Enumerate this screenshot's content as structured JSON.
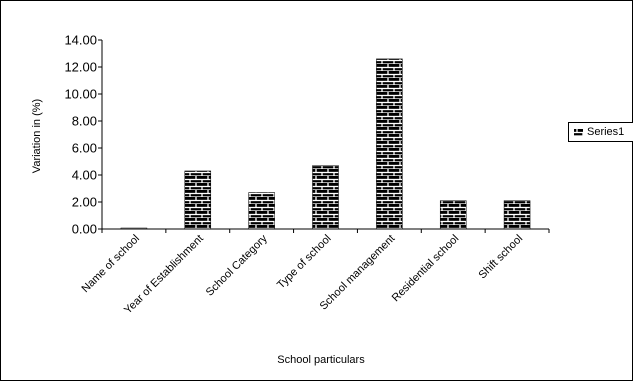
{
  "chart_data": {
    "type": "bar",
    "categories": [
      "Name of school",
      "Year of Establishment",
      "School Category",
      "Type of school",
      "School management",
      "Residential school",
      "Shift school"
    ],
    "series": [
      {
        "name": "Series1",
        "values": [
          0.05,
          4.3,
          2.7,
          4.7,
          12.6,
          2.1,
          2.1
        ]
      }
    ],
    "xlabel": "School particulars",
    "ylabel": "Variation in (%)",
    "ylim": [
      0,
      14
    ],
    "yticks": [
      "0.00",
      "2.00",
      "4.00",
      "6.00",
      "8.00",
      "10.00",
      "12.00",
      "14.00"
    ],
    "grid": false,
    "legend": "right",
    "bar_pattern": "brick",
    "colors": {
      "bar_fill": "#000000",
      "bar_mortar": "#ffffff",
      "axis": "#000000"
    }
  }
}
